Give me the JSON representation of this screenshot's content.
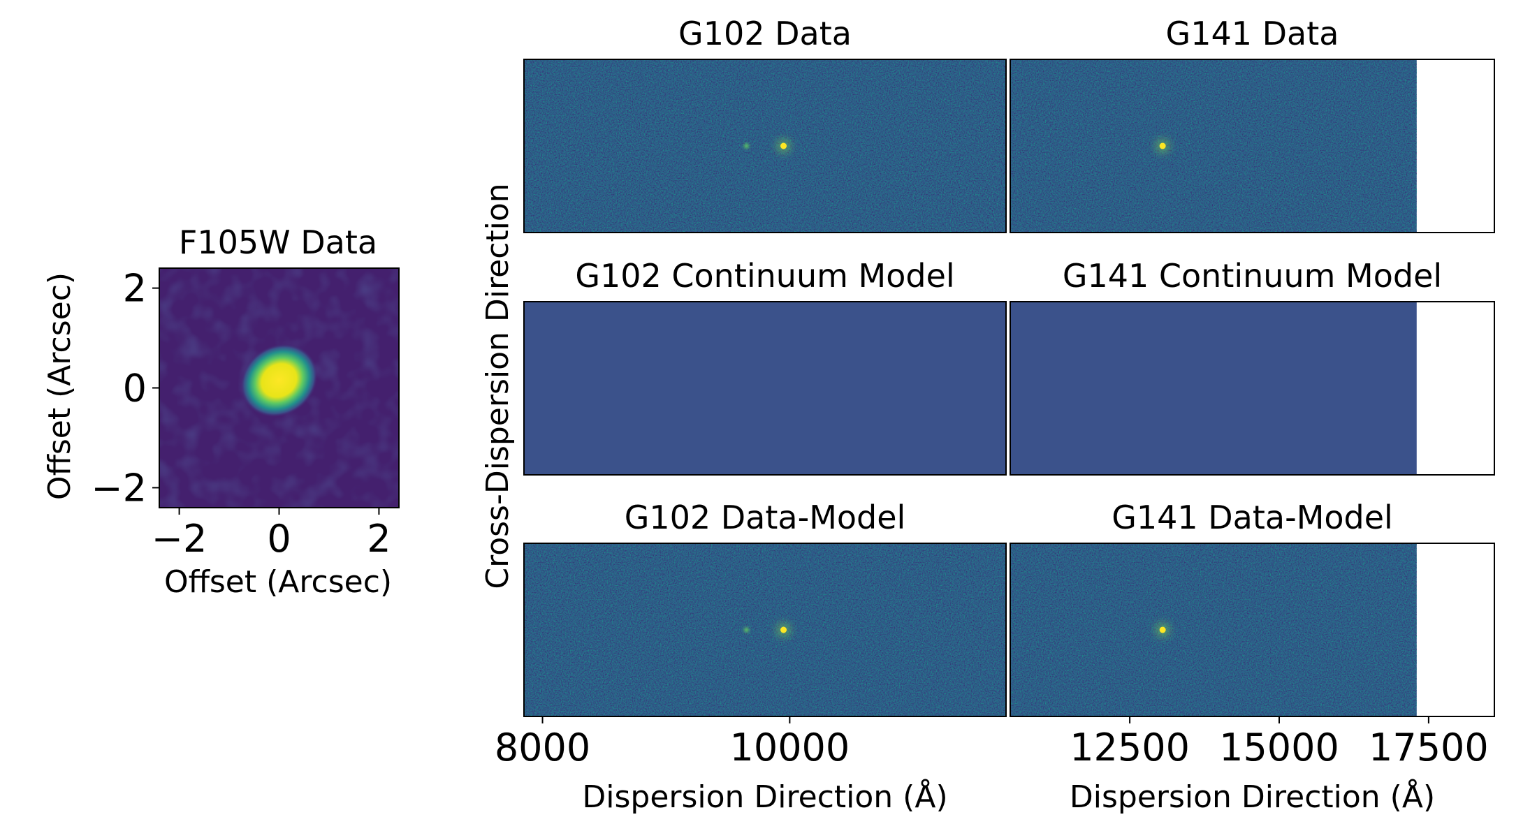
{
  "chart_data": [
    {
      "type": "heatmap",
      "title": "F105W Data",
      "xlabel": "Offset (Arcsec)",
      "ylabel": "Offset (Arcsec)",
      "xlim": [
        -2.4,
        2.4
      ],
      "ylim": [
        -2.4,
        2.4
      ],
      "xticks": [
        -2,
        0,
        2
      ],
      "yticks": [
        -2,
        0,
        2
      ],
      "xtick_labels": [
        "−2",
        "0",
        "2"
      ],
      "ytick_labels": [
        "−2",
        "0",
        "2"
      ],
      "source": {
        "x": 0.0,
        "y": 0.15,
        "peak": 1.0
      },
      "colormap": "viridis"
    },
    {
      "type": "heatmap",
      "title": "G102 Data",
      "xlim": [
        7850,
        11750
      ],
      "spectrum": {
        "x_start": 8100,
        "x_end": 11500,
        "bright_peaks": [
          9950
        ],
        "faint_peaks": [
          9650
        ]
      },
      "colormap": "viridis"
    },
    {
      "type": "heatmap",
      "title": "G141 Data",
      "xlim": [
        10500,
        18600
      ],
      "data_end": 17300,
      "spectrum": {
        "x_start": 10800,
        "x_end": 16800,
        "bright_peaks": [
          13050
        ],
        "faint_peaks": []
      },
      "colormap": "viridis"
    },
    {
      "type": "heatmap",
      "title": "G102 Continuum Model",
      "xlim": [
        7850,
        11750
      ],
      "spectrum": {
        "x_start": 8100,
        "x_end": 11500
      },
      "colormap": "viridis"
    },
    {
      "type": "heatmap",
      "title": "G141 Continuum Model",
      "xlim": [
        10500,
        18600
      ],
      "data_end": 17300,
      "spectrum": {
        "x_start": 10800,
        "x_end": 16800
      },
      "colormap": "viridis"
    },
    {
      "type": "heatmap",
      "title": "G102 Data-Model",
      "xlabel": "Dispersion Direction (Å)",
      "xlim": [
        7850,
        11750
      ],
      "xticks": [
        8000,
        10000
      ],
      "xtick_labels": [
        "8000",
        "10000"
      ],
      "spectrum": {
        "bright_peaks": [
          9950
        ],
        "faint_peaks": [
          9650
        ]
      },
      "colormap": "viridis"
    },
    {
      "type": "heatmap",
      "title": "G141 Data-Model",
      "xlabel": "Dispersion Direction (Å)",
      "xlim": [
        10500,
        18600
      ],
      "data_end": 17300,
      "xticks": [
        12500,
        15000,
        17500
      ],
      "xtick_labels": [
        "12500",
        "15000",
        "17500"
      ],
      "spectrum": {
        "bright_peaks": [
          13050
        ],
        "faint_peaks": []
      },
      "colormap": "viridis"
    }
  ],
  "shared_ylabel": "Cross-Dispersion Direction",
  "colors": {
    "noise_base": "#2f5c8a",
    "model_background": "#3b528b",
    "spectrum_trace": "#2da781",
    "peak": "#fde725",
    "f105w_background": "#44206e",
    "f105w_core": "#f2e21a"
  }
}
